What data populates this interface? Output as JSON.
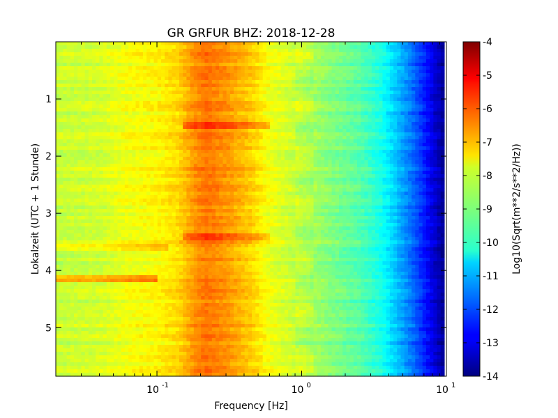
{
  "chart_data": {
    "type": "heatmap",
    "title": "GR GRFUR BHZ: 2018-12-28",
    "xlabel": "Frequency [Hz]",
    "ylabel": "Lokalzeit (UTC + 1 Stunde)",
    "x_scale": "log",
    "xlim": [
      0.02,
      10
    ],
    "ylim": [
      0,
      5.85
    ],
    "y_inverted": true,
    "x_ticks": [
      {
        "base": "10",
        "exp": "-1",
        "value": 0.1
      },
      {
        "base": "10",
        "exp": "0",
        "value": 1
      },
      {
        "base": "10",
        "exp": "1",
        "value": 10
      }
    ],
    "y_ticks": [
      {
        "label": "1",
        "value": 1
      },
      {
        "label": "2",
        "value": 2
      },
      {
        "label": "3",
        "value": 3
      },
      {
        "label": "4",
        "value": 4
      },
      {
        "label": "5",
        "value": 5
      }
    ],
    "colorbar": {
      "label": "Log10(Sqrt(m**2/s**2/Hz))",
      "range": [
        -14,
        -4
      ],
      "ticks": [
        "-4",
        "-5",
        "-6",
        "-7",
        "-8",
        "-9",
        "-10",
        "-11",
        "-12",
        "-13",
        "-14"
      ],
      "tick_values": [
        -4,
        -5,
        -6,
        -7,
        -8,
        -9,
        -10,
        -11,
        -12,
        -13,
        -14
      ],
      "colormap": "jet"
    },
    "spectrum_profile": {
      "frequency_hz": [
        0.02,
        0.04,
        0.06,
        0.1,
        0.14,
        0.18,
        0.22,
        0.3,
        0.45,
        0.6,
        1.0,
        1.5,
        2.5,
        3.5,
        4.5,
        6.0,
        8.0,
        10.0
      ],
      "log10_amplitude": [
        -8.3,
        -8.2,
        -7.9,
        -7.7,
        -7.4,
        -6.7,
        -6.4,
        -6.7,
        -7.3,
        -7.9,
        -8.4,
        -8.9,
        -9.4,
        -10.0,
        -10.8,
        -11.8,
        -13.0,
        -14.0
      ]
    },
    "events": [
      {
        "time": 1.45,
        "freq_range": [
          0.15,
          0.6
        ],
        "delta_log10": 0.9
      },
      {
        "time": 3.4,
        "freq_range": [
          0.15,
          0.6
        ],
        "delta_log10": 0.7
      },
      {
        "time": 4.15,
        "freq_range": [
          0.02,
          0.1
        ],
        "delta_log10": 1.2
      },
      {
        "time": 3.6,
        "freq_range": [
          0.02,
          0.12
        ],
        "delta_log10": 0.6
      }
    ]
  }
}
